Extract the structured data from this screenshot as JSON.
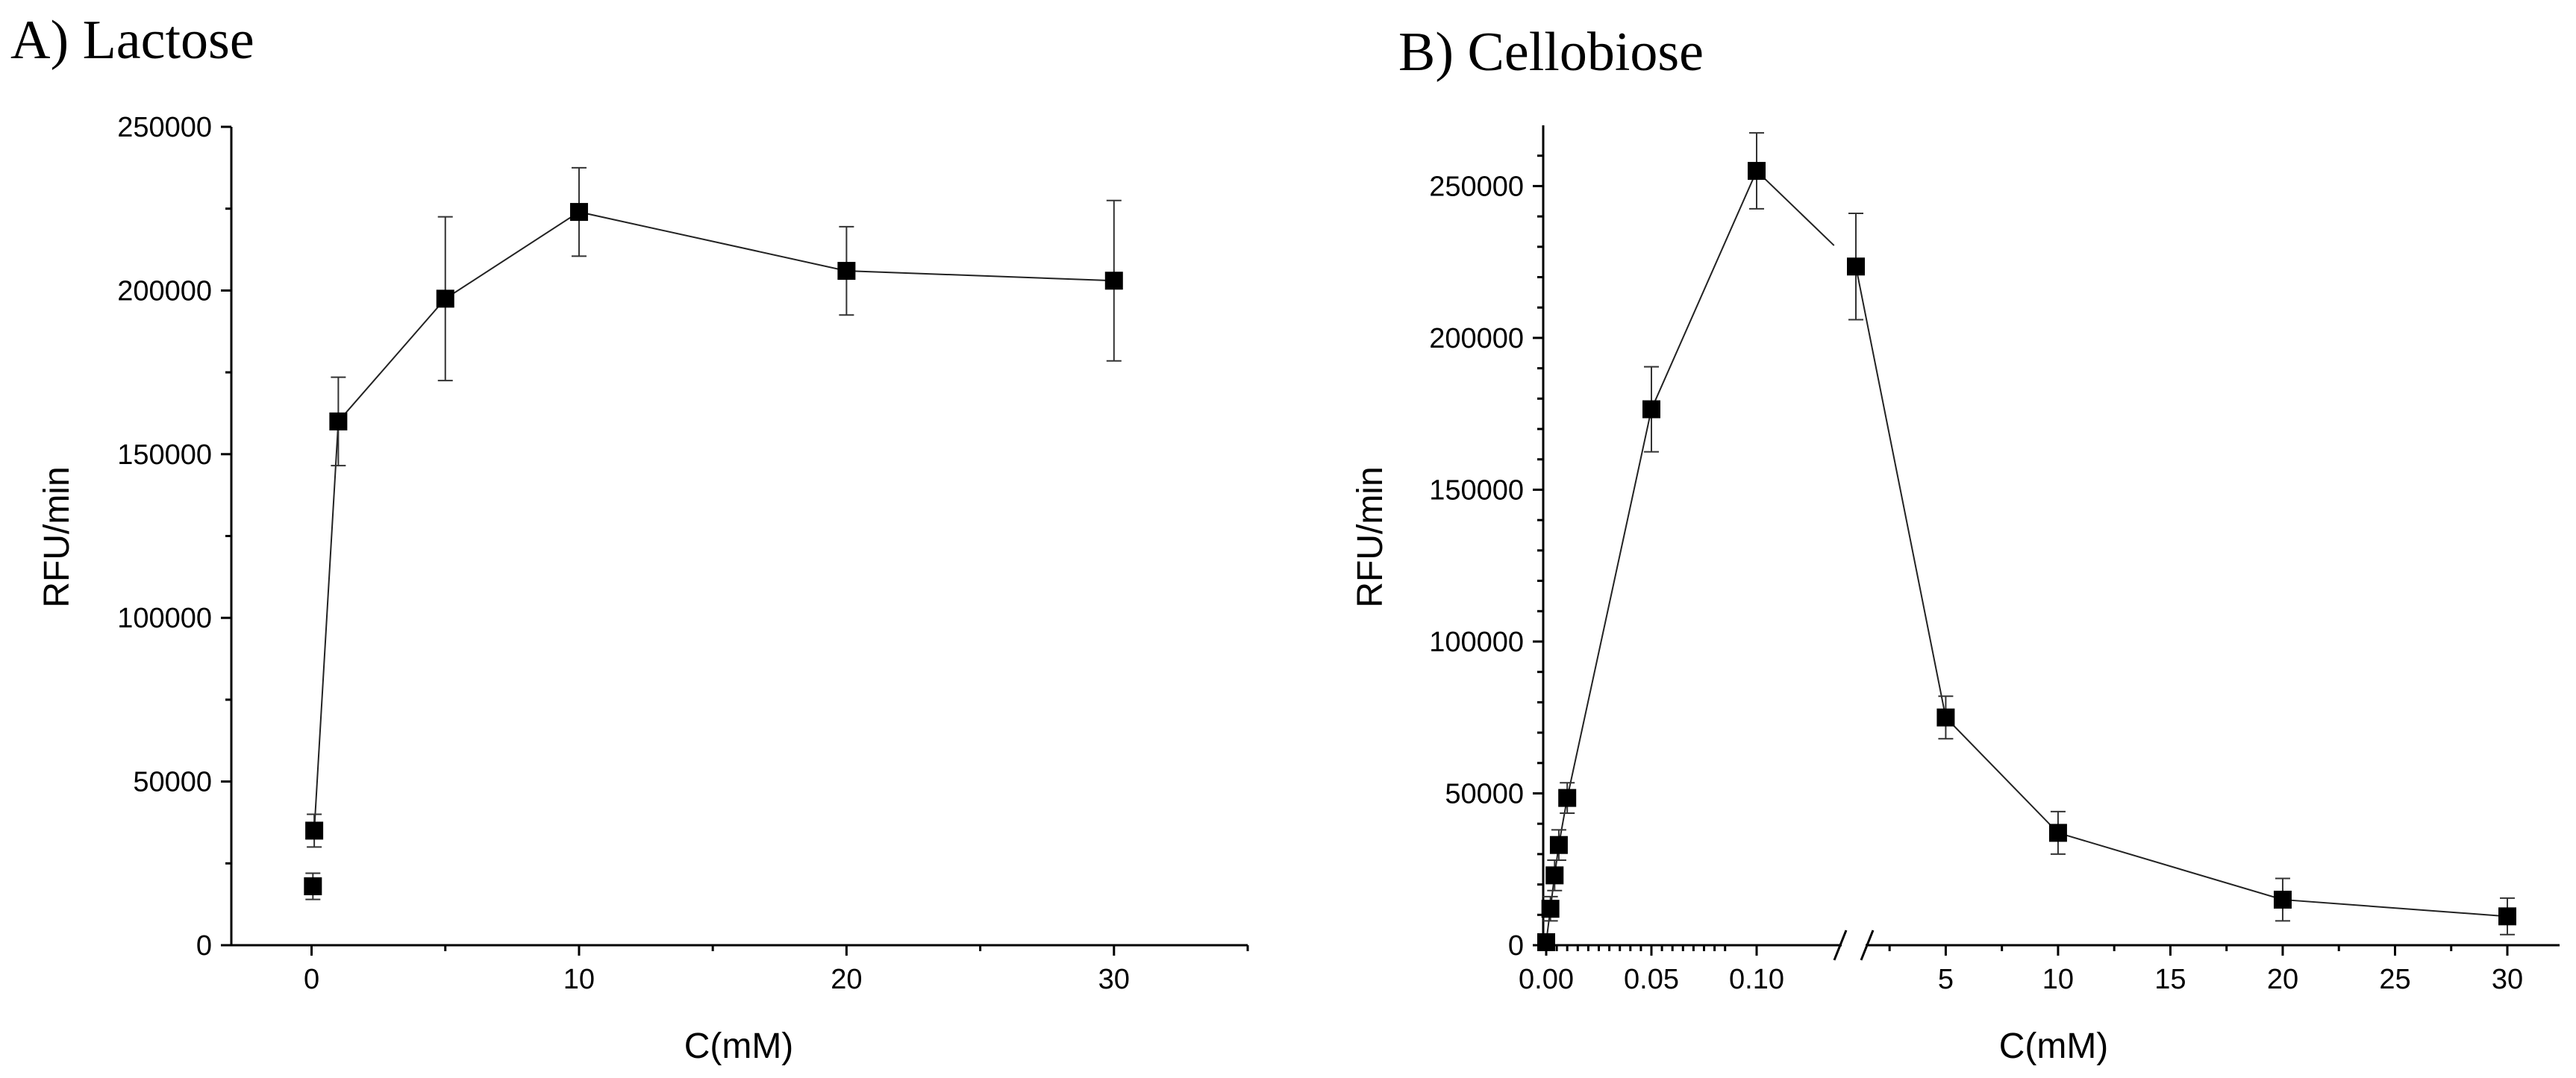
{
  "chart_data": [
    {
      "type": "scatter",
      "title": "A) Lactose",
      "xlabel": "C(mM)",
      "ylabel": "RFU/min",
      "xlim": [
        -3,
        35
      ],
      "ylim": [
        0,
        250000
      ],
      "xticks": [
        0,
        10,
        20,
        30
      ],
      "xtick_labels": [
        "0",
        "10",
        "20",
        "30"
      ],
      "yticks": [
        0,
        50000,
        100000,
        150000,
        200000,
        250000
      ],
      "ytick_labels": [
        "0",
        "50000",
        "100000",
        "150000",
        "200000",
        "250000"
      ],
      "series": [
        {
          "name": "Lactose",
          "x": [
            0.05,
            0.1,
            1,
            5,
            10,
            20,
            30
          ],
          "y": [
            18000,
            35000,
            160000,
            197500,
            224000,
            206000,
            203000
          ],
          "yerr": [
            4000,
            5000,
            13500,
            25000,
            13500,
            13500,
            24500
          ],
          "connected": [
            false,
            true,
            true,
            true,
            true,
            true,
            true
          ]
        }
      ]
    },
    {
      "type": "scatter",
      "title": "B) Cellobiose",
      "xlabel": "C(mM)",
      "ylabel": "RFU/min",
      "broken_x_axis": true,
      "x_segments": [
        {
          "range": [
            0,
            0.1
          ],
          "ticks": [
            0.0,
            0.05,
            0.1
          ],
          "tick_labels": [
            "0.00",
            "0.05",
            "0.10"
          ]
        },
        {
          "range": [
            1,
            30
          ],
          "ticks": [
            5,
            10,
            15,
            20,
            25,
            30
          ],
          "tick_labels": [
            "5",
            "10",
            "15",
            "20",
            "25",
            "30"
          ]
        }
      ],
      "ylim": [
        0,
        270000
      ],
      "yticks": [
        0,
        50000,
        100000,
        150000,
        200000,
        250000
      ],
      "ytick_labels": [
        "0",
        "50000",
        "100000",
        "150000",
        "200000",
        "250000"
      ],
      "series": [
        {
          "name": "Cellobiose",
          "x": [
            0.0,
            0.002,
            0.004,
            0.006,
            0.01,
            0.05,
            0.1,
            1,
            5,
            10,
            20,
            30
          ],
          "y": [
            1000,
            12000,
            23000,
            33000,
            48500,
            176500,
            255000,
            223500,
            75000,
            37000,
            15000,
            9500
          ],
          "yerr": [
            1500,
            4000,
            5000,
            5000,
            5000,
            14000,
            12500,
            17500,
            7000,
            7000,
            7000,
            6000
          ]
        }
      ]
    }
  ]
}
